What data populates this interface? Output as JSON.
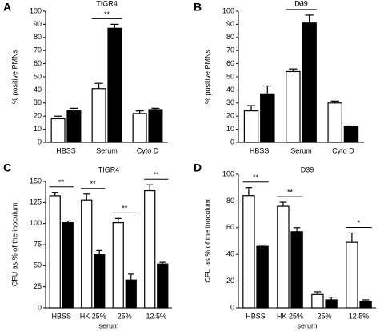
{
  "chart_data": [
    {
      "type": "bar",
      "panel": "A",
      "title": "TIGR4",
      "ylabel": "% positive PMNs",
      "categories": [
        "HBSS",
        "Serum",
        "Cyto D"
      ],
      "series": [
        {
          "color": "#ffffff",
          "values": [
            18,
            41,
            22
          ],
          "errors": [
            2,
            4,
            2
          ]
        },
        {
          "color": "#000000",
          "values": [
            24,
            87,
            25
          ],
          "errors": [
            2,
            3,
            1
          ]
        }
      ],
      "ylim": [
        0,
        100
      ],
      "yticks": [
        0,
        10,
        20,
        30,
        40,
        50,
        60,
        70,
        80,
        90,
        100
      ],
      "annotations": [
        {
          "text": "**",
          "category": "Serum"
        }
      ]
    },
    {
      "type": "bar",
      "panel": "B",
      "title": "D39",
      "ylabel": "% positive PMNs",
      "categories": [
        "HBSS",
        "Serum",
        "Cyto D"
      ],
      "series": [
        {
          "color": "#ffffff",
          "values": [
            24,
            54,
            30
          ],
          "errors": [
            4,
            2,
            1.5
          ]
        },
        {
          "color": "#000000",
          "values": [
            37,
            91,
            12
          ],
          "errors": [
            6,
            6,
            0.5
          ]
        }
      ],
      "ylim": [
        0,
        100
      ],
      "yticks": [
        0,
        10,
        20,
        30,
        40,
        50,
        60,
        70,
        80,
        90,
        100
      ],
      "annotations": [
        {
          "text": "**",
          "category": "Serum"
        }
      ]
    },
    {
      "type": "bar",
      "panel": "C",
      "title": "TIGR4",
      "ylabel": "CFU as % of the inoculum",
      "xlabel": "serum",
      "categories": [
        "HBSS",
        "HK 25%",
        "25%",
        "12.5%"
      ],
      "series": [
        {
          "color": "#ffffff",
          "values": [
            133,
            128,
            101,
            139
          ],
          "errors": [
            4,
            7,
            5,
            7
          ]
        },
        {
          "color": "#000000",
          "values": [
            101,
            63,
            33,
            52
          ],
          "errors": [
            2,
            5,
            7,
            2
          ]
        }
      ],
      "ylim": [
        0,
        150
      ],
      "yticks": [
        0,
        25,
        50,
        75,
        100,
        125,
        150
      ],
      "annotations": [
        {
          "text": "**",
          "category": "HBSS"
        },
        {
          "text": "**",
          "category": "HK 25%"
        },
        {
          "text": "**",
          "category": "25%"
        },
        {
          "text": "**",
          "category": "12.5%"
        }
      ]
    },
    {
      "type": "bar",
      "panel": "D",
      "title": "D39",
      "ylabel": "CFU as % of the  inoculum",
      "xlabel": "serum",
      "categories": [
        "HBSS",
        "HK 25%",
        "25%",
        "12.5%"
      ],
      "series": [
        {
          "color": "#ffffff",
          "values": [
            84,
            76,
            10,
            49
          ],
          "errors": [
            6,
            3,
            2,
            7
          ]
        },
        {
          "color": "#000000",
          "values": [
            46,
            57,
            6,
            5
          ],
          "errors": [
            1,
            3,
            2,
            1
          ]
        }
      ],
      "ylim": [
        0,
        100
      ],
      "yticks": [
        0,
        20,
        40,
        60,
        80,
        100
      ],
      "annotations": [
        {
          "text": "**",
          "category": "HBSS"
        },
        {
          "text": "**",
          "category": "HK 25%"
        },
        {
          "text": "*",
          "category": "12.5%"
        }
      ]
    }
  ]
}
